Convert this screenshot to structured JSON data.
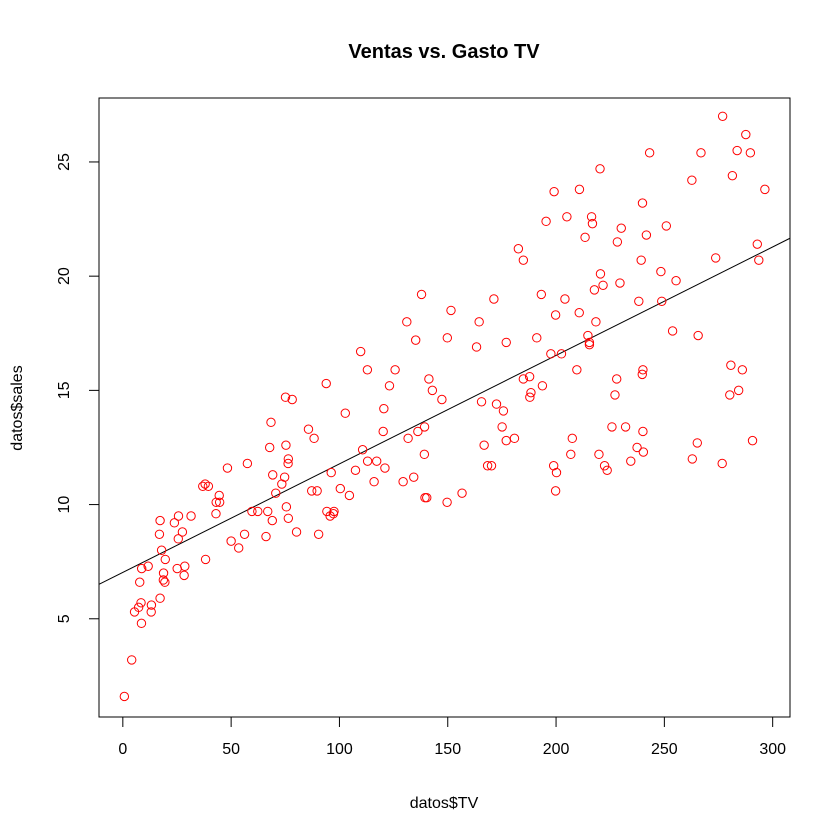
{
  "chart_data": {
    "type": "scatter",
    "title": "Ventas vs. Gasto TV",
    "xlabel": "datos$TV",
    "ylabel": "datos$sales",
    "xlim": [
      -11,
      308
    ],
    "ylim": [
      0.7,
      27.8
    ],
    "xticks": [
      "0",
      "50",
      "100",
      "150",
      "200",
      "250",
      "300"
    ],
    "yticks": [
      "5",
      "10",
      "15",
      "20",
      "25"
    ],
    "grid": false,
    "legend": "none",
    "point_color": "#ff0000",
    "line_color": "#000000",
    "regression_line": {
      "intercept": 7.03,
      "slope": 0.0475
    },
    "points": [
      [
        0.7,
        1.6
      ],
      [
        4.1,
        3.2
      ],
      [
        5.4,
        5.3
      ],
      [
        7.3,
        5.5
      ],
      [
        7.8,
        6.6
      ],
      [
        8.4,
        5.7
      ],
      [
        8.6,
        4.8
      ],
      [
        8.7,
        7.2
      ],
      [
        11.7,
        7.3
      ],
      [
        13.1,
        5.3
      ],
      [
        13.2,
        5.6
      ],
      [
        17.2,
        5.9
      ],
      [
        16.9,
        8.7
      ],
      [
        17.2,
        9.3
      ],
      [
        17.9,
        8.0
      ],
      [
        18.7,
        6.7
      ],
      [
        18.8,
        7.0
      ],
      [
        19.4,
        6.6
      ],
      [
        19.6,
        7.6
      ],
      [
        23.8,
        9.2
      ],
      [
        25.1,
        7.2
      ],
      [
        25.6,
        8.5
      ],
      [
        25.7,
        9.5
      ],
      [
        27.5,
        8.8
      ],
      [
        28.6,
        7.3
      ],
      [
        28.3,
        6.9
      ],
      [
        31.5,
        9.5
      ],
      [
        36.9,
        10.8
      ],
      [
        38.0,
        10.9
      ],
      [
        38.2,
        7.6
      ],
      [
        39.5,
        10.8
      ],
      [
        43.0,
        9.6
      ],
      [
        43.1,
        10.1
      ],
      [
        44.5,
        10.4
      ],
      [
        44.7,
        10.1
      ],
      [
        48.3,
        11.6
      ],
      [
        50.0,
        8.4
      ],
      [
        53.5,
        8.1
      ],
      [
        56.2,
        8.7
      ],
      [
        57.5,
        11.8
      ],
      [
        59.6,
        9.7
      ],
      [
        62.3,
        9.7
      ],
      [
        66.1,
        8.6
      ],
      [
        66.9,
        9.7
      ],
      [
        67.8,
        12.5
      ],
      [
        68.4,
        13.6
      ],
      [
        69.0,
        9.3
      ],
      [
        69.2,
        11.3
      ],
      [
        70.6,
        10.5
      ],
      [
        73.4,
        10.9
      ],
      [
        74.7,
        11.2
      ],
      [
        75.1,
        14.7
      ],
      [
        75.3,
        12.6
      ],
      [
        75.5,
        9.9
      ],
      [
        76.3,
        11.8
      ],
      [
        76.4,
        12.0
      ],
      [
        76.4,
        9.4
      ],
      [
        78.2,
        14.6
      ],
      [
        80.2,
        8.8
      ],
      [
        85.7,
        13.3
      ],
      [
        87.2,
        10.6
      ],
      [
        88.3,
        12.9
      ],
      [
        89.7,
        10.6
      ],
      [
        90.4,
        8.7
      ],
      [
        93.9,
        15.3
      ],
      [
        94.2,
        9.7
      ],
      [
        95.7,
        9.5
      ],
      [
        96.2,
        11.4
      ],
      [
        97.2,
        9.6
      ],
      [
        97.5,
        9.7
      ],
      [
        100.4,
        10.7
      ],
      [
        102.7,
        14.0
      ],
      [
        104.6,
        10.4
      ],
      [
        107.4,
        11.5
      ],
      [
        109.8,
        16.7
      ],
      [
        110.7,
        12.4
      ],
      [
        112.9,
        15.9
      ],
      [
        113.0,
        11.9
      ],
      [
        116.0,
        11.0
      ],
      [
        117.2,
        11.9
      ],
      [
        120.2,
        13.2
      ],
      [
        120.5,
        14.2
      ],
      [
        121.0,
        11.6
      ],
      [
        123.1,
        15.2
      ],
      [
        125.7,
        15.9
      ],
      [
        129.4,
        11.0
      ],
      [
        131.1,
        18.0
      ],
      [
        131.7,
        12.9
      ],
      [
        134.3,
        11.2
      ],
      [
        135.2,
        17.2
      ],
      [
        136.2,
        13.2
      ],
      [
        137.9,
        19.2
      ],
      [
        139.2,
        12.2
      ],
      [
        139.3,
        13.4
      ],
      [
        139.5,
        10.3
      ],
      [
        140.3,
        10.3
      ],
      [
        141.3,
        15.5
      ],
      [
        142.9,
        15.0
      ],
      [
        147.3,
        14.6
      ],
      [
        149.7,
        10.1
      ],
      [
        149.8,
        17.3
      ],
      [
        151.5,
        18.5
      ],
      [
        156.6,
        10.5
      ],
      [
        163.3,
        16.9
      ],
      [
        164.5,
        18.0
      ],
      [
        165.6,
        14.5
      ],
      [
        166.8,
        12.6
      ],
      [
        168.4,
        11.7
      ],
      [
        170.2,
        11.7
      ],
      [
        171.3,
        19.0
      ],
      [
        172.5,
        14.4
      ],
      [
        175.1,
        13.4
      ],
      [
        175.7,
        14.1
      ],
      [
        177.0,
        17.1
      ],
      [
        177.0,
        12.8
      ],
      [
        180.8,
        12.9
      ],
      [
        182.6,
        21.2
      ],
      [
        184.9,
        20.7
      ],
      [
        184.9,
        15.5
      ],
      [
        187.8,
        15.6
      ],
      [
        187.9,
        14.7
      ],
      [
        188.4,
        14.9
      ],
      [
        191.1,
        17.3
      ],
      [
        193.2,
        19.2
      ],
      [
        193.7,
        15.2
      ],
      [
        195.4,
        22.4
      ],
      [
        197.6,
        16.6
      ],
      [
        198.9,
        11.7
      ],
      [
        199.1,
        23.7
      ],
      [
        199.8,
        18.3
      ],
      [
        199.8,
        10.6
      ],
      [
        200.2,
        11.4
      ],
      [
        202.5,
        16.6
      ],
      [
        204.1,
        19.0
      ],
      [
        205.0,
        22.6
      ],
      [
        206.8,
        12.2
      ],
      [
        207.5,
        12.9
      ],
      [
        209.6,
        15.9
      ],
      [
        210.7,
        18.4
      ],
      [
        210.8,
        23.8
      ],
      [
        213.4,
        21.7
      ],
      [
        214.7,
        17.4
      ],
      [
        215.4,
        17.1
      ],
      [
        215.4,
        17.0
      ],
      [
        216.4,
        22.6
      ],
      [
        216.8,
        22.3
      ],
      [
        217.7,
        19.4
      ],
      [
        218.4,
        18.0
      ],
      [
        219.8,
        12.2
      ],
      [
        220.3,
        24.7
      ],
      [
        220.5,
        20.1
      ],
      [
        221.7,
        19.6
      ],
      [
        222.4,
        11.7
      ],
      [
        223.6,
        11.5
      ],
      [
        225.8,
        13.4
      ],
      [
        227.2,
        14.8
      ],
      [
        228.0,
        15.5
      ],
      [
        228.3,
        21.5
      ],
      [
        229.5,
        19.7
      ],
      [
        230.1,
        22.1
      ],
      [
        232.1,
        13.4
      ],
      [
        234.5,
        11.9
      ],
      [
        237.4,
        12.5
      ],
      [
        238.2,
        18.9
      ],
      [
        239.3,
        20.7
      ],
      [
        239.8,
        15.7
      ],
      [
        239.9,
        23.2
      ],
      [
        240.1,
        13.2
      ],
      [
        240.3,
        12.3
      ],
      [
        240.1,
        15.9
      ],
      [
        241.7,
        21.8
      ],
      [
        243.2,
        25.4
      ],
      [
        248.4,
        20.2
      ],
      [
        248.8,
        18.9
      ],
      [
        250.9,
        22.2
      ],
      [
        253.8,
        17.6
      ],
      [
        255.4,
        19.8
      ],
      [
        262.7,
        24.2
      ],
      [
        262.9,
        12.0
      ],
      [
        265.2,
        12.7
      ],
      [
        265.6,
        17.4
      ],
      [
        266.9,
        25.4
      ],
      [
        273.7,
        20.8
      ],
      [
        276.7,
        11.8
      ],
      [
        276.9,
        27.0
      ],
      [
        280.2,
        14.8
      ],
      [
        280.7,
        16.1
      ],
      [
        281.4,
        24.4
      ],
      [
        283.6,
        25.5
      ],
      [
        284.3,
        15.0
      ],
      [
        286.0,
        15.9
      ],
      [
        287.6,
        26.2
      ],
      [
        289.7,
        25.4
      ],
      [
        290.7,
        12.8
      ],
      [
        292.9,
        21.4
      ],
      [
        293.6,
        20.7
      ],
      [
        296.4,
        23.8
      ]
    ]
  }
}
